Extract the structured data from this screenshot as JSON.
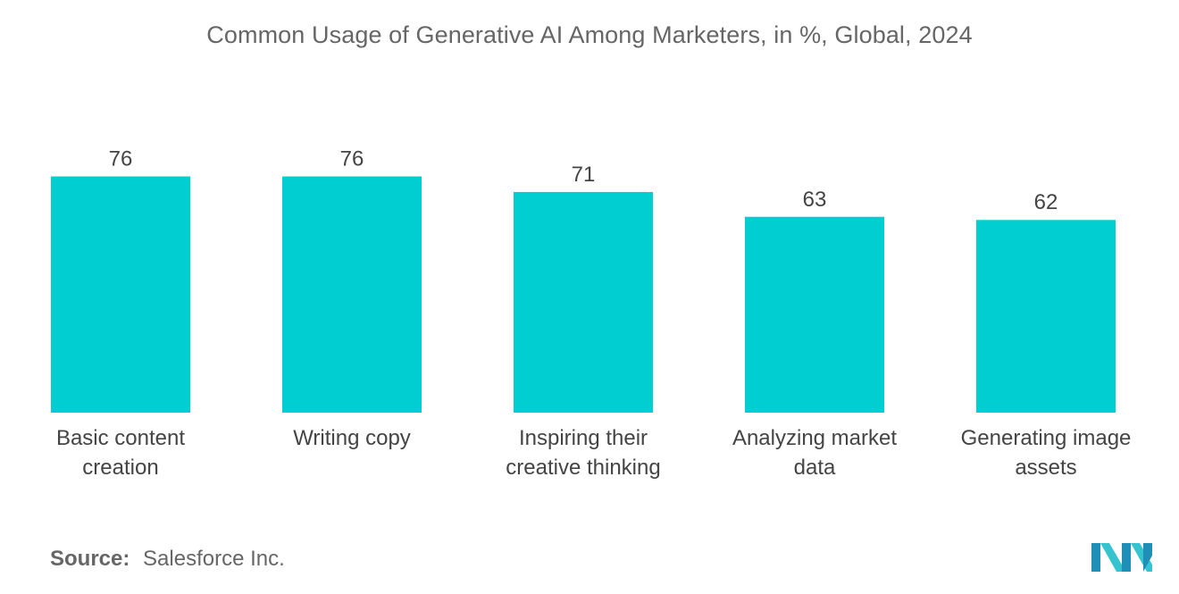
{
  "chart_data": {
    "type": "bar",
    "title": "Common Usage of Generative AI Among Marketers, in %, Global, 2024",
    "categories": [
      [
        "Basic content",
        "creation"
      ],
      [
        "Writing copy"
      ],
      [
        "Inspiring their",
        "creative thinking"
      ],
      [
        "Analyzing market",
        "data"
      ],
      [
        "Generating image",
        "assets"
      ]
    ],
    "values": [
      76,
      76,
      71,
      63,
      62
    ],
    "ylim": [
      0,
      80
    ],
    "xlabel": "",
    "ylabel": "",
    "grid": false,
    "legend": "none",
    "bar_color": "#00CED1"
  },
  "source": {
    "label": "Source:",
    "text": "Salesforce Inc."
  },
  "logo": {
    "icon": "mordor-intelligence-logo-icon",
    "colors": [
      "#1f8fb8",
      "#35c4cf"
    ]
  }
}
